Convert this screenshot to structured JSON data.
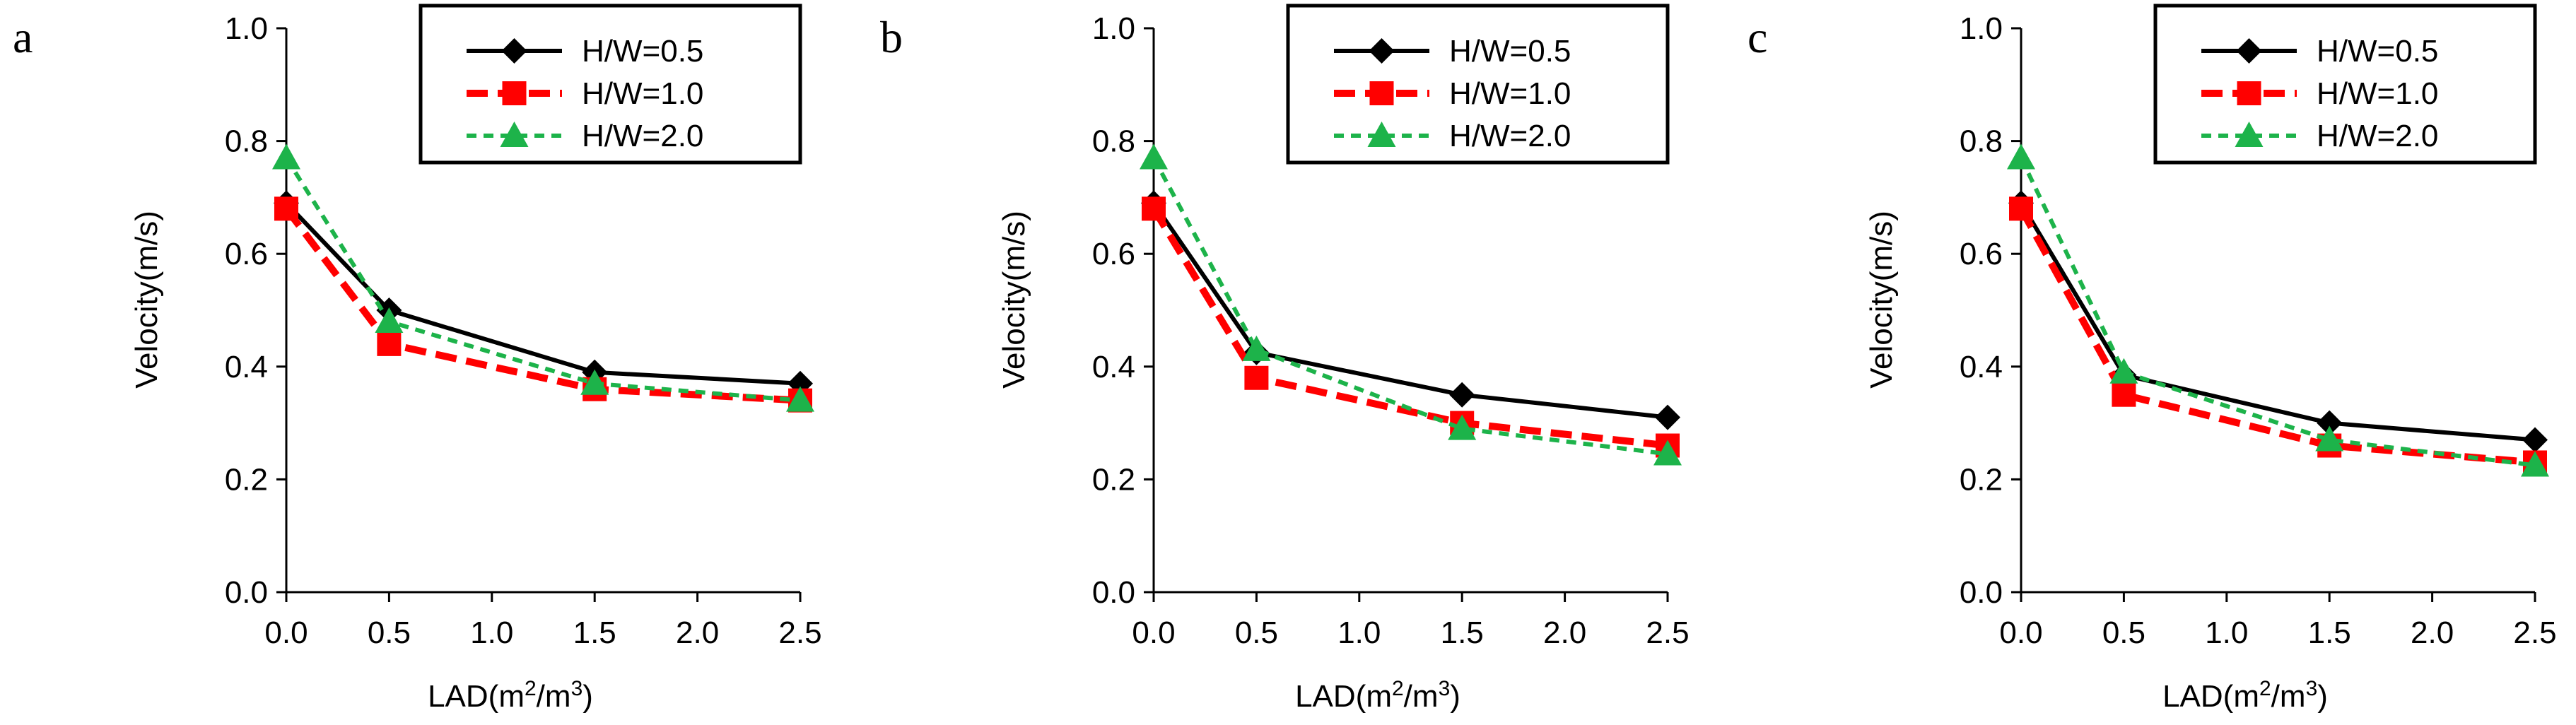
{
  "figure": {
    "panels": [
      "a",
      "b",
      "c"
    ]
  },
  "colors": {
    "H/W=0.5": "#000000",
    "H/W=1.0": "#ff0000",
    "H/W=2.0": "#1db34a"
  },
  "chart_data": [
    {
      "type": "line",
      "panel_label": "a",
      "title": "",
      "x": [
        0.0,
        0.5,
        1.5,
        2.5
      ],
      "series": [
        {
          "name": "H/W=0.5",
          "marker": "diamond",
          "line": "solid",
          "values": [
            0.69,
            0.5,
            0.39,
            0.37
          ]
        },
        {
          "name": "H/W=1.0",
          "marker": "square",
          "line": "dashed",
          "values": [
            0.68,
            0.44,
            0.36,
            0.34
          ]
        },
        {
          "name": "H/W=2.0",
          "marker": "triangle",
          "line": "dotted",
          "values": [
            0.77,
            0.48,
            0.37,
            0.34
          ]
        }
      ],
      "xlabel_main": "LAD(m",
      "xlabel_sup1": "2",
      "xlabel_mid": "/m",
      "xlabel_sup2": "3",
      "xlabel_end": ")",
      "ylabel": "Velocity(m/s)",
      "xlim": [
        0.0,
        2.5
      ],
      "ylim": [
        0.0,
        1.0
      ],
      "xticks": [
        "0.0",
        "0.5",
        "1.0",
        "1.5",
        "2.0",
        "2.5"
      ],
      "yticks": [
        "0.0",
        "0.2",
        "0.4",
        "0.6",
        "0.8",
        "1.0"
      ],
      "legend_position": "top-right",
      "grid": false
    },
    {
      "type": "line",
      "panel_label": "b",
      "title": "",
      "x": [
        0.0,
        0.5,
        1.5,
        2.5
      ],
      "series": [
        {
          "name": "H/W=0.5",
          "marker": "diamond",
          "line": "solid",
          "values": [
            0.69,
            0.425,
            0.35,
            0.31
          ]
        },
        {
          "name": "H/W=1.0",
          "marker": "square",
          "line": "dashed",
          "values": [
            0.68,
            0.38,
            0.3,
            0.26
          ]
        },
        {
          "name": "H/W=2.0",
          "marker": "triangle",
          "line": "dotted",
          "values": [
            0.77,
            0.43,
            0.29,
            0.245
          ]
        }
      ],
      "xlabel_main": "LAD(m",
      "xlabel_sup1": "2",
      "xlabel_mid": "/m",
      "xlabel_sup2": "3",
      "xlabel_end": ")",
      "ylabel": "Velocity(m/s)",
      "xlim": [
        0.0,
        2.5
      ],
      "ylim": [
        0.0,
        1.0
      ],
      "xticks": [
        "0.0",
        "0.5",
        "1.0",
        "1.5",
        "2.0",
        "2.5"
      ],
      "yticks": [
        "0.0",
        "0.2",
        "0.4",
        "0.6",
        "0.8",
        "1.0"
      ],
      "legend_position": "top-right",
      "grid": false
    },
    {
      "type": "line",
      "panel_label": "c",
      "title": "",
      "x": [
        0.0,
        0.5,
        1.5,
        2.5
      ],
      "series": [
        {
          "name": "H/W=0.5",
          "marker": "diamond",
          "line": "solid",
          "values": [
            0.69,
            0.385,
            0.3,
            0.27
          ]
        },
        {
          "name": "H/W=1.0",
          "marker": "square",
          "line": "dashed",
          "values": [
            0.68,
            0.35,
            0.26,
            0.23
          ]
        },
        {
          "name": "H/W=2.0",
          "marker": "triangle",
          "line": "dotted",
          "values": [
            0.77,
            0.39,
            0.27,
            0.225
          ]
        }
      ],
      "xlabel_main": "LAD(m",
      "xlabel_sup1": "2",
      "xlabel_mid": "/m",
      "xlabel_sup2": "3",
      "xlabel_end": ")",
      "ylabel": "Velocity(m/s)",
      "xlim": [
        0.0,
        2.5
      ],
      "ylim": [
        0.0,
        1.0
      ],
      "xticks": [
        "0.0",
        "0.5",
        "1.0",
        "1.5",
        "2.0",
        "2.5"
      ],
      "yticks": [
        "0.0",
        "0.2",
        "0.4",
        "0.6",
        "0.8",
        "1.0"
      ],
      "legend_position": "top-right",
      "grid": false
    }
  ]
}
